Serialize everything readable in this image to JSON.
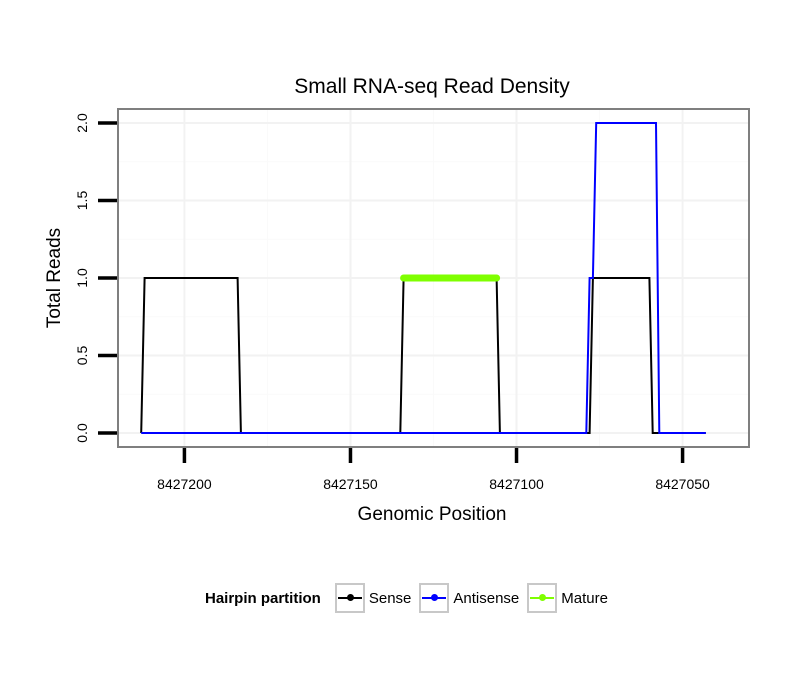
{
  "chart_data": {
    "type": "line",
    "title": "Small RNA-seq Read Density",
    "xlabel": "Genomic Position",
    "ylabel": "Total Reads",
    "xlim": [
      8427220,
      8427030
    ],
    "ylim": [
      -0.09,
      2.09
    ],
    "x_reversed": true,
    "x_ticks": [
      8427200,
      8427150,
      8427100,
      8427050
    ],
    "x_tick_labels": [
      "8427200",
      "8427150",
      "8427100",
      "8427050"
    ],
    "y_ticks": [
      0.0,
      0.5,
      1.0,
      1.5,
      2.0
    ],
    "y_tick_labels": [
      "0.0",
      "0.5",
      "1.0",
      "1.5",
      "2.0"
    ],
    "grid": true,
    "legend": {
      "title": "Hairpin partition",
      "placement": "bottom",
      "entries": [
        "Sense",
        "Antisense",
        "Mature"
      ]
    },
    "series": [
      {
        "name": "Sense",
        "color": "#000000",
        "x": [
          8427213,
          8427212,
          8427184,
          8427183,
          8427135,
          8427134,
          8427106,
          8427105,
          8427078,
          8427077,
          8427060,
          8427059,
          8427043
        ],
        "y": [
          0,
          1,
          1,
          0,
          0,
          1,
          1,
          0,
          0,
          1,
          1,
          0,
          0
        ]
      },
      {
        "name": "Antisense",
        "color": "#0000ff",
        "x": [
          8427213,
          8427079,
          8427078,
          8427077,
          8427076,
          8427058,
          8427057,
          8427043
        ],
        "y": [
          0,
          0,
          1,
          1,
          2,
          2,
          0,
          0
        ]
      },
      {
        "name": "Mature",
        "color": "#7fff00",
        "x": [
          8427134,
          8427106
        ],
        "y": [
          1,
          1
        ]
      }
    ]
  }
}
